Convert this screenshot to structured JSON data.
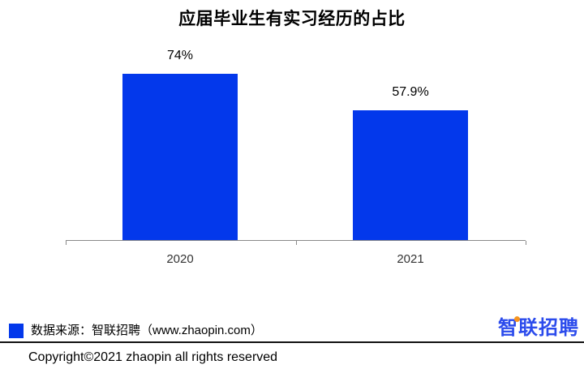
{
  "title": "应届毕业生有实习经历的占比",
  "chart_data": {
    "type": "bar",
    "title": "应届毕业生有实习经历的占比",
    "categories": [
      "2020",
      "2021"
    ],
    "values": [
      74,
      57.9
    ],
    "value_labels": [
      "74%",
      "57.9%"
    ],
    "unit": "%",
    "xlabel": "",
    "ylabel": "",
    "ylim": [
      0,
      100
    ],
    "grid": false,
    "legend_position": "none",
    "bar_color": "#0338eb",
    "axis_color": "#8a8a8a"
  },
  "footer": {
    "source_label": "数据来源：智联招聘（www.zhaopin.com）",
    "swatch_color": "#0338eb",
    "logo": {
      "first_char": "智",
      "rest": "联招聘",
      "blue": "#2b4bec",
      "orange": "#f7941e"
    },
    "copyright": "Copyright©2021 zhaopin all rights reserved"
  }
}
